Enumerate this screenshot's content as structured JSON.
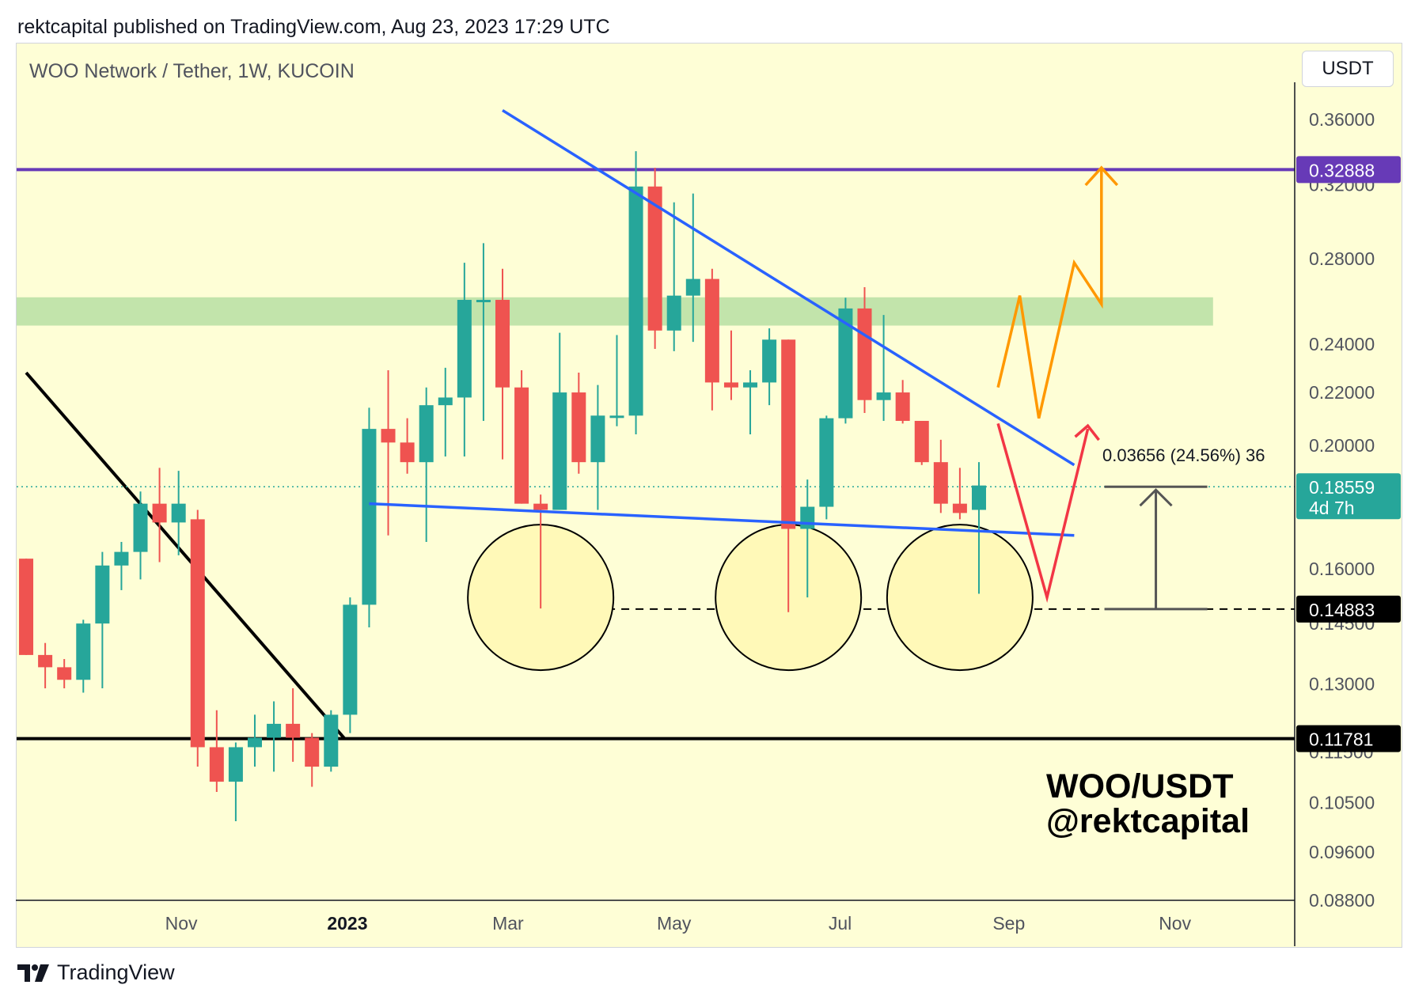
{
  "header": {
    "publisher_line": "rektcapital published on TradingView.com, Aug 23, 2023 17:29 UTC"
  },
  "symbol": {
    "title": "WOO Network / Tether, 1W, KUCOIN",
    "currency": "USDT"
  },
  "footer": {
    "brand": "TradingView"
  },
  "watermark": {
    "line1": "WOO/USDT",
    "line2": "@rektcapital"
  },
  "colors": {
    "bg": "#fefed6",
    "up": "#26a69a",
    "down": "#ef5350",
    "resistance_purple": "#673ab7",
    "trendline_blue": "#2962ff",
    "zone_green": "#b7dfa3",
    "orange_path": "#ff9800",
    "red_path": "#f23645"
  },
  "chart_data": {
    "type": "candlestick",
    "title": "WOO Network / Tether, 1W, KUCOIN",
    "y_axis": {
      "scale": "log",
      "ticks": [
        "0.36000",
        "0.32000",
        "0.28000",
        "0.24000",
        "0.22000",
        "0.20000",
        "0.16000",
        "0.14500",
        "0.13000",
        "0.11500",
        "0.10500",
        "0.09600",
        "0.08800"
      ],
      "range": [
        0.088,
        0.385
      ]
    },
    "x_axis": {
      "ticks": [
        {
          "label": "Nov",
          "date": "2022-11-01",
          "bold": false
        },
        {
          "label": "2023",
          "date": "2023-01-01",
          "bold": true
        },
        {
          "label": "Mar",
          "date": "2023-03-01",
          "bold": false
        },
        {
          "label": "May",
          "date": "2023-05-01",
          "bold": false
        },
        {
          "label": "Jul",
          "date": "2023-07-01",
          "bold": false
        },
        {
          "label": "Sep",
          "date": "2023-09-01",
          "bold": false
        },
        {
          "label": "Nov",
          "date": "2023-11-01",
          "bold": false
        }
      ],
      "range": [
        "2022-09-05",
        "2023-12-15"
      ]
    },
    "candles": [
      {
        "date": "2022-09-05",
        "open": 0.163,
        "high": 0.163,
        "low": 0.137,
        "close": 0.137
      },
      {
        "date": "2022-09-12",
        "open": 0.137,
        "high": 0.14,
        "low": 0.129,
        "close": 0.134
      },
      {
        "date": "2022-09-19",
        "open": 0.134,
        "high": 0.136,
        "low": 0.129,
        "close": 0.131
      },
      {
        "date": "2022-09-26",
        "open": 0.131,
        "high": 0.146,
        "low": 0.128,
        "close": 0.145
      },
      {
        "date": "2022-10-03",
        "open": 0.145,
        "high": 0.165,
        "low": 0.129,
        "close": 0.161
      },
      {
        "date": "2022-10-10",
        "open": 0.161,
        "high": 0.168,
        "low": 0.154,
        "close": 0.165
      },
      {
        "date": "2022-10-17",
        "open": 0.165,
        "high": 0.184,
        "low": 0.157,
        "close": 0.18
      },
      {
        "date": "2022-10-24",
        "open": 0.18,
        "high": 0.192,
        "low": 0.162,
        "close": 0.174
      },
      {
        "date": "2022-10-31",
        "open": 0.174,
        "high": 0.191,
        "low": 0.164,
        "close": 0.18
      },
      {
        "date": "2022-11-07",
        "open": 0.175,
        "high": 0.178,
        "low": 0.112,
        "close": 0.116
      },
      {
        "date": "2022-11-14",
        "open": 0.116,
        "high": 0.124,
        "low": 0.107,
        "close": 0.109
      },
      {
        "date": "2022-11-21",
        "open": 0.109,
        "high": 0.117,
        "low": 0.1015,
        "close": 0.116
      },
      {
        "date": "2022-11-28",
        "open": 0.116,
        "high": 0.123,
        "low": 0.112,
        "close": 0.118
      },
      {
        "date": "2022-12-05",
        "open": 0.118,
        "high": 0.126,
        "low": 0.111,
        "close": 0.121
      },
      {
        "date": "2022-12-12",
        "open": 0.121,
        "high": 0.129,
        "low": 0.113,
        "close": 0.118
      },
      {
        "date": "2022-12-19",
        "open": 0.118,
        "high": 0.119,
        "low": 0.108,
        "close": 0.112
      },
      {
        "date": "2022-12-26",
        "open": 0.112,
        "high": 0.124,
        "low": 0.111,
        "close": 0.123
      },
      {
        "date": "2023-01-02",
        "open": 0.123,
        "high": 0.152,
        "low": 0.119,
        "close": 0.15
      },
      {
        "date": "2023-01-09",
        "open": 0.15,
        "high": 0.214,
        "low": 0.144,
        "close": 0.206
      },
      {
        "date": "2023-01-16",
        "open": 0.206,
        "high": 0.229,
        "low": 0.17,
        "close": 0.201
      },
      {
        "date": "2023-01-23",
        "open": 0.201,
        "high": 0.21,
        "low": 0.19,
        "close": 0.194
      },
      {
        "date": "2023-01-30",
        "open": 0.194,
        "high": 0.222,
        "low": 0.168,
        "close": 0.215
      },
      {
        "date": "2023-02-06",
        "open": 0.215,
        "high": 0.23,
        "low": 0.196,
        "close": 0.218
      },
      {
        "date": "2023-02-13",
        "open": 0.218,
        "high": 0.278,
        "low": 0.196,
        "close": 0.26
      },
      {
        "date": "2023-02-20",
        "open": 0.26,
        "high": 0.288,
        "low": 0.209,
        "close": 0.26
      },
      {
        "date": "2023-02-27",
        "open": 0.26,
        "high": 0.275,
        "low": 0.195,
        "close": 0.222
      },
      {
        "date": "2023-03-06",
        "open": 0.222,
        "high": 0.229,
        "low": 0.18,
        "close": 0.18
      },
      {
        "date": "2023-03-13",
        "open": 0.18,
        "high": 0.183,
        "low": 0.149,
        "close": 0.178
      },
      {
        "date": "2023-03-20",
        "open": 0.178,
        "high": 0.245,
        "low": 0.178,
        "close": 0.22
      },
      {
        "date": "2023-03-27",
        "open": 0.22,
        "high": 0.228,
        "low": 0.19,
        "close": 0.194
      },
      {
        "date": "2023-04-03",
        "open": 0.194,
        "high": 0.223,
        "low": 0.178,
        "close": 0.211
      },
      {
        "date": "2023-04-10",
        "open": 0.211,
        "high": 0.244,
        "low": 0.207,
        "close": 0.211
      },
      {
        "date": "2023-04-17",
        "open": 0.211,
        "high": 0.34,
        "low": 0.204,
        "close": 0.319
      },
      {
        "date": "2023-04-24",
        "open": 0.319,
        "high": 0.33,
        "low": 0.238,
        "close": 0.246
      },
      {
        "date": "2023-05-01",
        "open": 0.246,
        "high": 0.31,
        "low": 0.237,
        "close": 0.262
      },
      {
        "date": "2023-05-08",
        "open": 0.262,
        "high": 0.315,
        "low": 0.241,
        "close": 0.27
      },
      {
        "date": "2023-05-15",
        "open": 0.27,
        "high": 0.275,
        "low": 0.213,
        "close": 0.224
      },
      {
        "date": "2023-05-22",
        "open": 0.224,
        "high": 0.246,
        "low": 0.217,
        "close": 0.222
      },
      {
        "date": "2023-05-29",
        "open": 0.222,
        "high": 0.229,
        "low": 0.204,
        "close": 0.224
      },
      {
        "date": "2023-06-05",
        "open": 0.224,
        "high": 0.247,
        "low": 0.215,
        "close": 0.242
      },
      {
        "date": "2023-06-12",
        "open": 0.242,
        "high": 0.242,
        "low": 0.148,
        "close": 0.172
      },
      {
        "date": "2023-06-19",
        "open": 0.172,
        "high": 0.188,
        "low": 0.152,
        "close": 0.179
      },
      {
        "date": "2023-06-26",
        "open": 0.179,
        "high": 0.211,
        "low": 0.175,
        "close": 0.21
      },
      {
        "date": "2023-07-03",
        "open": 0.21,
        "high": 0.261,
        "low": 0.208,
        "close": 0.256
      },
      {
        "date": "2023-07-10",
        "open": 0.256,
        "high": 0.266,
        "low": 0.212,
        "close": 0.217
      },
      {
        "date": "2023-07-17",
        "open": 0.217,
        "high": 0.253,
        "low": 0.209,
        "close": 0.22
      },
      {
        "date": "2023-07-24",
        "open": 0.22,
        "high": 0.225,
        "low": 0.208,
        "close": 0.209
      },
      {
        "date": "2023-07-31",
        "open": 0.209,
        "high": 0.209,
        "low": 0.193,
        "close": 0.194
      },
      {
        "date": "2023-08-07",
        "open": 0.194,
        "high": 0.202,
        "low": 0.177,
        "close": 0.18
      },
      {
        "date": "2023-08-14",
        "open": 0.18,
        "high": 0.192,
        "low": 0.175,
        "close": 0.177
      },
      {
        "date": "2023-08-21",
        "open": 0.178,
        "high": 0.194,
        "low": 0.153,
        "close": 0.186
      }
    ],
    "horizontal_levels": [
      {
        "price_label": "0.32888",
        "value": 0.32888,
        "style": "solid",
        "color": "#673ab7",
        "label_bg": "#673ab7"
      },
      {
        "price_label": "0.14883",
        "value": 0.14883,
        "style": "dashed",
        "color": "#000000",
        "label_bg": "#000000"
      },
      {
        "price_label": "0.11781",
        "value": 0.11781,
        "style": "solid",
        "color": "#000000",
        "label_bg": "#000000"
      }
    ],
    "last_price": {
      "price_label": "0.18559",
      "value": 0.18559,
      "countdown": "4d 7h",
      "label_bg": "#26a69a"
    },
    "annotations": {
      "measure_label": "0.03656 (24.56%) 36",
      "resistance_zone": {
        "low": 0.2525,
        "high": 0.2575,
        "from": "2022-09-05",
        "to": "2023-11-15"
      },
      "descending_trendline": {
        "from": [
          "2023-02-27",
          0.366
        ],
        "to": [
          "2023-09-25",
          0.193
        ]
      },
      "support_trendline": {
        "from": [
          "2023-01-09",
          0.18
        ],
        "to": [
          "2023-09-25",
          0.17
        ]
      },
      "falling_line": {
        "from": [
          "2022-09-05",
          0.228
        ],
        "to": [
          "2022-12-31",
          0.1178
        ]
      },
      "circles_near": [
        "2023-03-13",
        "2023-06-12",
        "2023-08-14"
      ],
      "orange_path": [
        [
          "2023-08-28",
          0.222
        ],
        [
          "2023-09-05",
          0.262
        ],
        [
          "2023-09-12",
          0.21
        ],
        [
          "2023-09-25",
          0.278
        ],
        [
          "2023-10-05",
          0.258
        ],
        [
          "2023-10-05",
          0.33
        ]
      ],
      "red_path": [
        [
          "2023-08-28",
          0.208
        ],
        [
          "2023-09-15",
          0.152
        ],
        [
          "2023-09-30",
          0.206
        ]
      ]
    }
  }
}
